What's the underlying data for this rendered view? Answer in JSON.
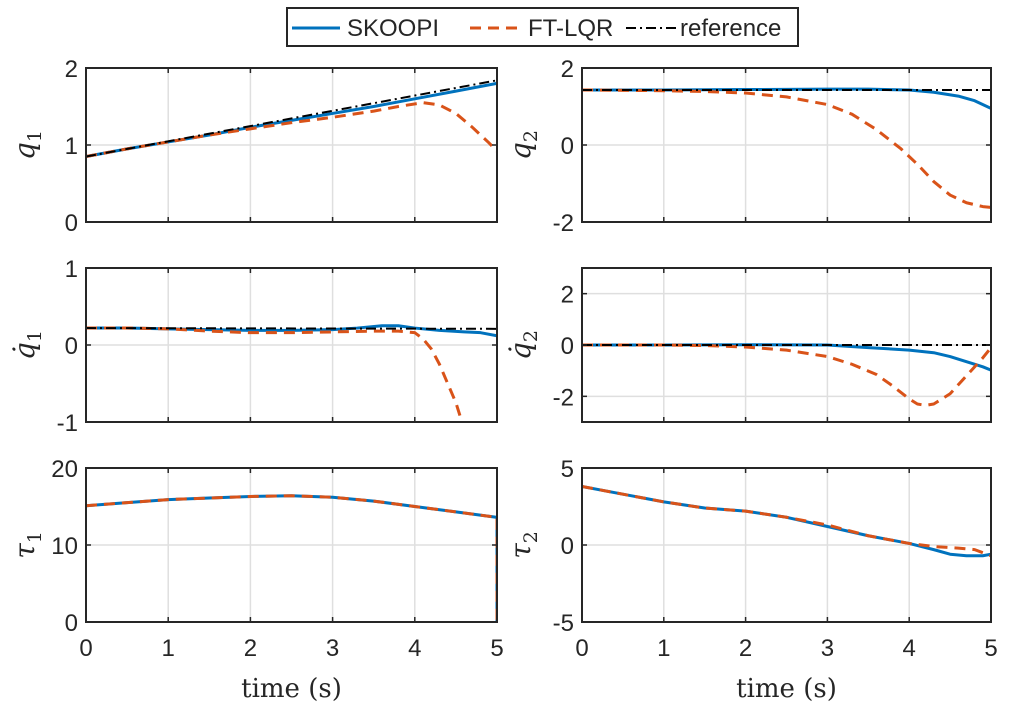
{
  "colors": {
    "skoopi": "#0072BD",
    "ftlqr": "#D95319",
    "reference": "#000000",
    "axis": "#262626",
    "grid": "#DFDFDF"
  },
  "legend": {
    "placement": "top-center",
    "entries": [
      {
        "key": "skoopi",
        "label": "SKOOPI",
        "dash": "solid"
      },
      {
        "key": "ftlqr",
        "label": "FT-LQR",
        "dash": "dashed"
      },
      {
        "key": "reference",
        "label": "reference",
        "dash": "dash-dot"
      }
    ]
  },
  "chart_data": [
    {
      "type": "line",
      "id": "q1",
      "ylabel": "q",
      "ylabel_sub": "1",
      "xlim": [
        0,
        5
      ],
      "ylim": [
        0,
        2
      ],
      "xticks": [
        0,
        1,
        2,
        3,
        4,
        5
      ],
      "yticks": [
        0,
        1,
        2
      ],
      "show_xticklabels": false,
      "xlabel": "",
      "grid": true,
      "series": [
        {
          "key": "skoopi",
          "x": [
            0,
            0.5,
            1,
            1.5,
            2,
            2.5,
            3,
            3.5,
            4,
            4.5,
            5
          ],
          "y": [
            0.85,
            0.95,
            1.04,
            1.13,
            1.23,
            1.32,
            1.41,
            1.5,
            1.6,
            1.7,
            1.8
          ]
        },
        {
          "key": "ftlqr",
          "x": [
            0,
            0.5,
            1,
            1.5,
            2,
            2.5,
            3,
            3.5,
            3.8,
            4.1,
            4.3,
            4.5,
            4.7,
            4.9,
            5
          ],
          "y": [
            0.85,
            0.95,
            1.04,
            1.13,
            1.21,
            1.29,
            1.36,
            1.44,
            1.5,
            1.55,
            1.52,
            1.41,
            1.23,
            1.03,
            0.92
          ]
        },
        {
          "key": "reference",
          "x": [
            0,
            5
          ],
          "y": [
            0.85,
            1.84
          ]
        }
      ]
    },
    {
      "type": "line",
      "id": "q2",
      "ylabel": "q",
      "ylabel_sub": "2",
      "xlim": [
        0,
        5
      ],
      "ylim": [
        -2,
        2
      ],
      "xticks": [
        0,
        1,
        2,
        3,
        4,
        5
      ],
      "yticks": [
        -2,
        0,
        2
      ],
      "show_xticklabels": false,
      "xlabel": "",
      "grid": true,
      "series": [
        {
          "key": "skoopi",
          "x": [
            0,
            1,
            2,
            3,
            3.5,
            4,
            4.3,
            4.6,
            4.8,
            5
          ],
          "y": [
            1.43,
            1.43,
            1.44,
            1.45,
            1.45,
            1.43,
            1.37,
            1.27,
            1.15,
            0.95
          ]
        },
        {
          "key": "ftlqr",
          "x": [
            0,
            0.5,
            1,
            1.5,
            2,
            2.5,
            3,
            3.3,
            3.6,
            3.9,
            4.1,
            4.3,
            4.5,
            4.7,
            4.9,
            5
          ],
          "y": [
            1.43,
            1.42,
            1.41,
            1.39,
            1.35,
            1.25,
            1.05,
            0.8,
            0.4,
            -0.1,
            -0.5,
            -0.95,
            -1.3,
            -1.5,
            -1.6,
            -1.62
          ]
        },
        {
          "key": "reference",
          "x": [
            0,
            5
          ],
          "y": [
            1.43,
            1.43
          ]
        }
      ]
    },
    {
      "type": "line",
      "id": "qdot1",
      "ylabel": "q̇",
      "ylabel_sub": "1",
      "xlim": [
        0,
        5
      ],
      "ylim": [
        -1,
        1
      ],
      "xticks": [
        0,
        1,
        2,
        3,
        4,
        5
      ],
      "yticks": [
        -1,
        0,
        1
      ],
      "show_xticklabels": false,
      "xlabel": "",
      "grid": true,
      "series": [
        {
          "key": "skoopi",
          "x": [
            0,
            0.5,
            1,
            1.5,
            2,
            2.5,
            3,
            3.3,
            3.6,
            3.8,
            4,
            4.3,
            4.6,
            4.8,
            5
          ],
          "y": [
            0.22,
            0.22,
            0.21,
            0.2,
            0.19,
            0.19,
            0.2,
            0.22,
            0.25,
            0.25,
            0.22,
            0.19,
            0.17,
            0.16,
            0.12
          ]
        },
        {
          "key": "ftlqr",
          "x": [
            0,
            0.5,
            1,
            1.5,
            2,
            2.5,
            3,
            3.5,
            3.8,
            4,
            4.1,
            4.2,
            4.3,
            4.4,
            4.5,
            4.55
          ],
          "y": [
            0.22,
            0.22,
            0.21,
            0.18,
            0.16,
            0.16,
            0.17,
            0.18,
            0.18,
            0.16,
            0.08,
            -0.05,
            -0.25,
            -0.5,
            -0.75,
            -0.92
          ]
        },
        {
          "key": "reference",
          "x": [
            0,
            5
          ],
          "y": [
            0.22,
            0.21
          ]
        }
      ]
    },
    {
      "type": "line",
      "id": "qdot2",
      "ylabel": "q̇",
      "ylabel_sub": "2",
      "xlim": [
        0,
        5
      ],
      "ylim": [
        -3,
        3
      ],
      "xticks": [
        0,
        1,
        2,
        3,
        4,
        5
      ],
      "yticks": [
        -2,
        0,
        2
      ],
      "show_xticklabels": false,
      "xlabel": "",
      "grid": true,
      "series": [
        {
          "key": "skoopi",
          "x": [
            0,
            1,
            2,
            3,
            3.5,
            4,
            4.3,
            4.5,
            4.7,
            4.9,
            5
          ],
          "y": [
            0,
            0,
            0.01,
            0,
            -0.1,
            -0.2,
            -0.3,
            -0.45,
            -0.65,
            -0.85,
            -0.98
          ]
        },
        {
          "key": "ftlqr",
          "x": [
            0,
            0.5,
            1,
            1.5,
            2,
            2.5,
            3,
            3.3,
            3.6,
            3.8,
            4,
            4.1,
            4.2,
            4.3,
            4.5,
            4.7,
            4.9,
            5
          ],
          "y": [
            0,
            0,
            0,
            -0.02,
            -0.08,
            -0.2,
            -0.45,
            -0.75,
            -1.15,
            -1.6,
            -2.1,
            -2.3,
            -2.35,
            -2.3,
            -1.9,
            -1.2,
            -0.5,
            -0.1
          ]
        },
        {
          "key": "reference",
          "x": [
            0,
            5
          ],
          "y": [
            0,
            0
          ]
        }
      ]
    },
    {
      "type": "line",
      "id": "tau1",
      "ylabel": "τ",
      "ylabel_sub": "1",
      "xlim": [
        0,
        5
      ],
      "ylim": [
        0,
        20
      ],
      "xticks": [
        0,
        1,
        2,
        3,
        4,
        5
      ],
      "yticks": [
        0,
        10,
        20
      ],
      "show_xticklabels": true,
      "xlabel": "time (s)",
      "grid": true,
      "series": [
        {
          "key": "skoopi",
          "x": [
            0,
            0.5,
            1,
            1.5,
            2,
            2.5,
            3,
            3.5,
            4,
            4.5,
            4.99,
            5,
            5
          ],
          "y": [
            15.1,
            15.5,
            15.9,
            16.1,
            16.3,
            16.4,
            16.2,
            15.7,
            15,
            14.3,
            13.6,
            13.6,
            0
          ]
        },
        {
          "key": "ftlqr",
          "x": [
            0,
            0.5,
            1,
            1.5,
            2,
            2.5,
            3,
            3.5,
            4,
            4.5,
            4.99,
            5,
            5
          ],
          "y": [
            15.1,
            15.5,
            15.9,
            16.1,
            16.3,
            16.4,
            16.2,
            15.7,
            15,
            14.3,
            13.6,
            13.6,
            0
          ]
        }
      ]
    },
    {
      "type": "line",
      "id": "tau2",
      "ylabel": "τ",
      "ylabel_sub": "2",
      "xlim": [
        0,
        5
      ],
      "ylim": [
        -5,
        5
      ],
      "xticks": [
        0,
        1,
        2,
        3,
        4,
        5
      ],
      "yticks": [
        -5,
        0,
        5
      ],
      "show_xticklabels": true,
      "xlabel": "time (s)",
      "grid": true,
      "series": [
        {
          "key": "skoopi",
          "x": [
            0,
            0.5,
            1,
            1.5,
            2,
            2.5,
            3,
            3.5,
            4,
            4.3,
            4.5,
            4.7,
            4.9,
            5
          ],
          "y": [
            3.8,
            3.3,
            2.8,
            2.4,
            2.2,
            1.8,
            1.2,
            0.6,
            0.1,
            -0.3,
            -0.6,
            -0.7,
            -0.7,
            -0.6
          ]
        },
        {
          "key": "ftlqr",
          "x": [
            0,
            0.5,
            1,
            1.5,
            2,
            2.5,
            3,
            3.5,
            4,
            4.3,
            4.6,
            4.8,
            5
          ],
          "y": [
            3.8,
            3.3,
            2.8,
            2.4,
            2.2,
            1.8,
            1.3,
            0.6,
            0.1,
            -0.1,
            -0.2,
            -0.3,
            -0.7
          ]
        }
      ]
    }
  ]
}
